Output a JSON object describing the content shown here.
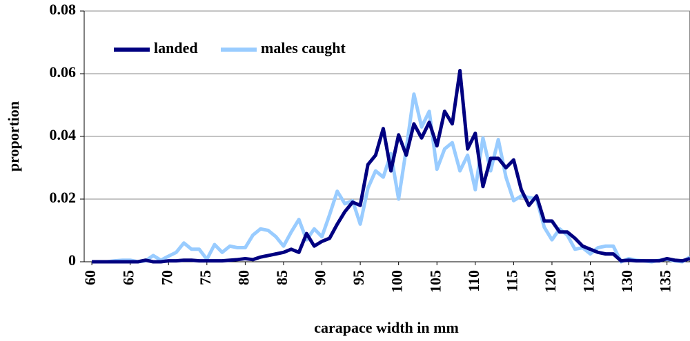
{
  "chart_data": {
    "type": "line",
    "x_label": "carapace width in mm",
    "y_label": "proportion",
    "x": [
      60,
      61,
      62,
      63,
      64,
      65,
      66,
      67,
      68,
      69,
      70,
      71,
      72,
      73,
      74,
      75,
      76,
      77,
      78,
      79,
      80,
      81,
      82,
      83,
      84,
      85,
      86,
      87,
      88,
      89,
      90,
      91,
      92,
      93,
      94,
      95,
      96,
      97,
      98,
      99,
      100,
      101,
      102,
      103,
      104,
      105,
      106,
      107,
      108,
      109,
      110,
      111,
      112,
      113,
      114,
      115,
      116,
      117,
      118,
      119,
      120,
      121,
      122,
      123,
      124,
      125,
      126,
      127,
      128,
      129,
      130,
      131,
      132,
      133,
      134,
      135,
      136,
      137,
      138
    ],
    "series": [
      {
        "name": "landed",
        "color": "#000080",
        "values": [
          0,
          0,
          0,
          0,
          0,
          0,
          0,
          0.0005,
          0,
          0,
          0.0003,
          0.0003,
          0.0005,
          0.0005,
          0.0003,
          0.0003,
          0.0003,
          0.0003,
          0.0005,
          0.0007,
          0.001,
          0.0007,
          0.0015,
          0.002,
          0.0025,
          0.003,
          0.004,
          0.003,
          0.009,
          0.005,
          0.0065,
          0.0075,
          0.012,
          0.016,
          0.019,
          0.018,
          0.031,
          0.034,
          0.0425,
          0.029,
          0.0405,
          0.034,
          0.044,
          0.0395,
          0.0445,
          0.037,
          0.048,
          0.044,
          0.061,
          0.036,
          0.041,
          0.024,
          0.033,
          0.033,
          0.03,
          0.0325,
          0.023,
          0.018,
          0.021,
          0.013,
          0.013,
          0.0095,
          0.0095,
          0.0075,
          0.005,
          0.004,
          0.003,
          0.0025,
          0.0025,
          0.0003,
          0.0005,
          0.0003,
          0.0003,
          0.0003,
          0.0003,
          0.001,
          0.0005,
          0.0003,
          0.001
        ]
      },
      {
        "name": "males caught",
        "color": "#99ccff",
        "values": [
          0,
          0,
          0,
          0.0003,
          0.0005,
          0.0005,
          0,
          0.0003,
          0.002,
          0.0005,
          0.0018,
          0.003,
          0.006,
          0.004,
          0.004,
          0.0008,
          0.0055,
          0.003,
          0.005,
          0.0045,
          0.0045,
          0.0085,
          0.0105,
          0.01,
          0.008,
          0.005,
          0.0095,
          0.0135,
          0.007,
          0.0105,
          0.008,
          0.015,
          0.0225,
          0.0185,
          0.0195,
          0.012,
          0.0235,
          0.029,
          0.027,
          0.0345,
          0.02,
          0.036,
          0.0535,
          0.043,
          0.048,
          0.0295,
          0.036,
          0.038,
          0.029,
          0.034,
          0.023,
          0.0395,
          0.029,
          0.039,
          0.027,
          0.0195,
          0.021,
          0.0205,
          0.02,
          0.011,
          0.007,
          0.0105,
          0.0085,
          0.004,
          0.0045,
          0.0025,
          0.0045,
          0.005,
          0.005,
          0,
          0.001,
          0.0005,
          0.0003,
          0,
          0.0005,
          0.0008,
          0.0003,
          0,
          0.0015
        ]
      }
    ],
    "xlim": [
      59,
      138
    ],
    "xticks": [
      60,
      65,
      70,
      75,
      80,
      85,
      90,
      95,
      100,
      105,
      110,
      115,
      120,
      125,
      130,
      135
    ],
    "ylim": [
      0,
      0.08
    ],
    "yticks": [
      0,
      0.02,
      0.04,
      0.06,
      0.08
    ],
    "grid": true,
    "legend": "top-left"
  }
}
